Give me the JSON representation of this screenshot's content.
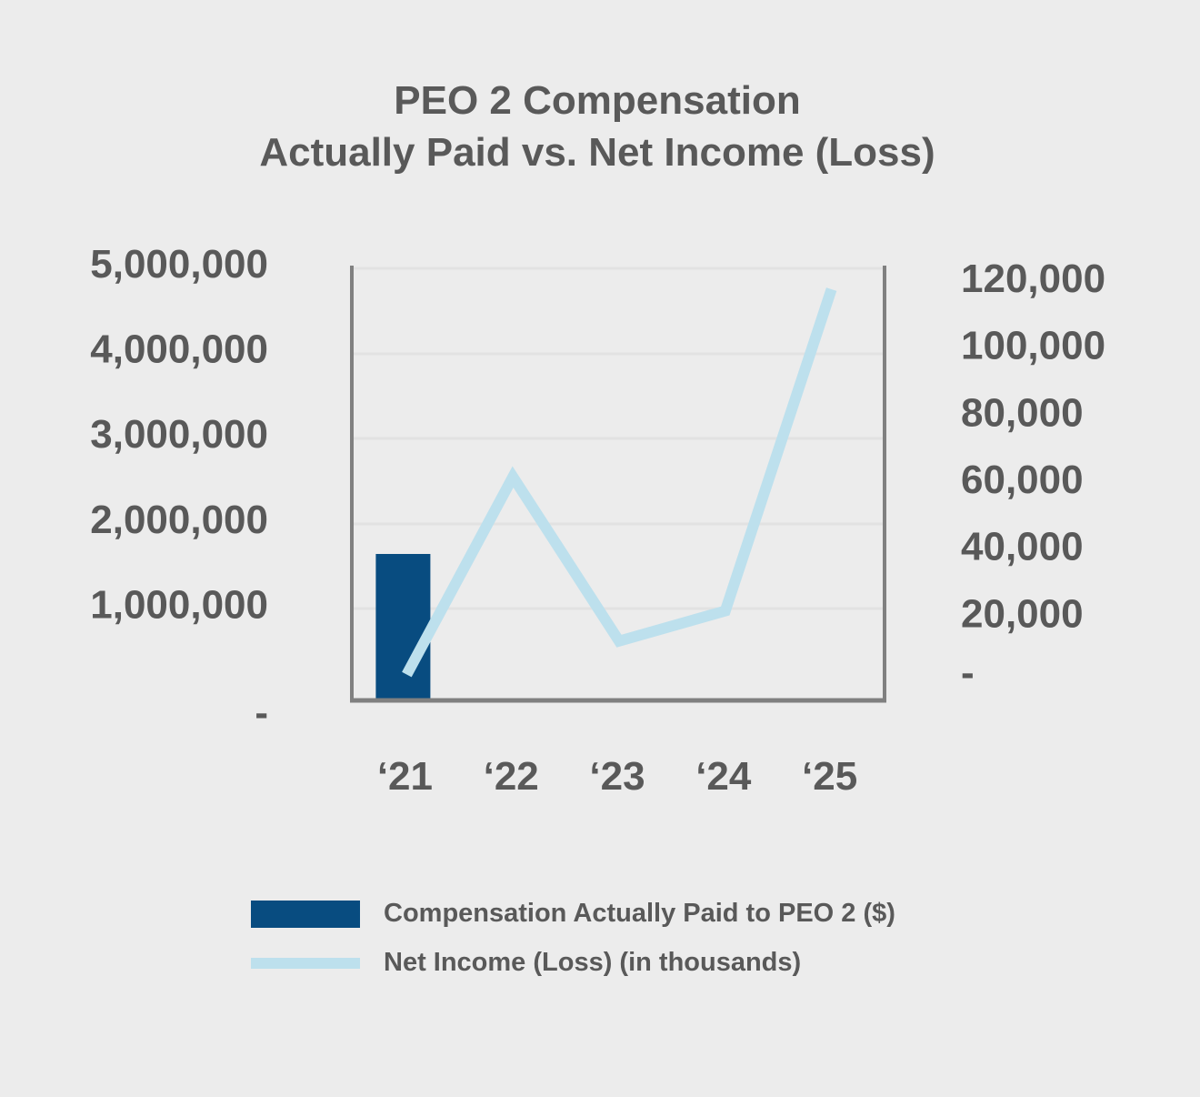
{
  "chart_data": {
    "type": "bar+line",
    "title": "PEO 2 Compensation",
    "subtitle": "Actually Paid vs. Net Income (Loss)",
    "categories": [
      "‘21",
      "‘22",
      "‘23",
      "‘24",
      "‘25"
    ],
    "series": [
      {
        "name": "Compensation Actually Paid to PEO 2 ($)",
        "type": "bar",
        "axis": "left",
        "color": "#084c80",
        "values": [
          1720000,
          null,
          null,
          null,
          null
        ]
      },
      {
        "name": "Net Income (Loss) (in thousands)",
        "type": "line",
        "axis": "right",
        "color": "#bde0ed",
        "values": [
          5000,
          64000,
          15000,
          24000,
          120000
        ]
      }
    ],
    "y_left": {
      "ylim": [
        0,
        5000000
      ],
      "ticks": [
        0,
        1000000,
        2000000,
        3000000,
        4000000,
        5000000
      ],
      "tick_labels": [
        "-",
        "1,000,000",
        "2,000,000",
        "3,000,000",
        "4,000,000",
        "5,000,000"
      ]
    },
    "y_right": {
      "ylim": [
        0,
        120000
      ],
      "ticks": [
        0,
        20000,
        40000,
        60000,
        80000,
        100000,
        120000
      ],
      "tick_labels": [
        "-",
        "20,000",
        "40,000",
        "60,000",
        "80,000",
        "100,000",
        "120,000"
      ]
    },
    "grid": true,
    "legend_position": "bottom"
  }
}
